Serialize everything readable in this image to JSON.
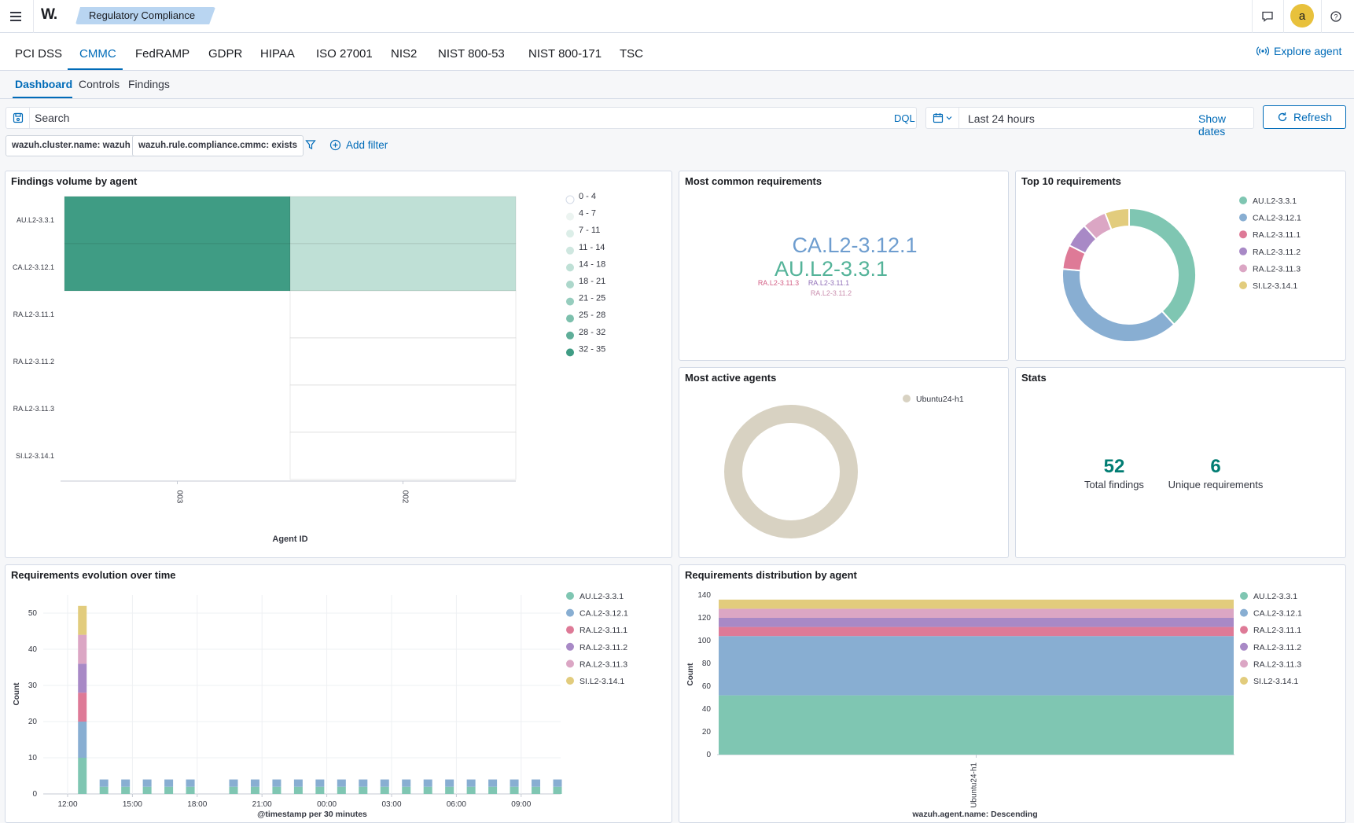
{
  "header": {
    "logo": "W.",
    "breadcrumb": "Regulatory Compliance",
    "icons": [
      "menu-icon",
      "chat-icon",
      "help-icon"
    ],
    "avatar_letter": "a"
  },
  "tabs": [
    "PCI DSS",
    "CMMC",
    "FedRAMP",
    "GDPR",
    "HIPAA",
    "ISO 27001",
    "NIS2",
    "NIST 800-53",
    "NIST 800-171",
    "TSC"
  ],
  "active_tab": "CMMC",
  "explore_agent": "Explore agent",
  "subtabs": [
    "Dashboard",
    "Controls",
    "Findings"
  ],
  "active_subtab": "Dashboard",
  "search": {
    "placeholder": "Search",
    "language": "DQL"
  },
  "time": {
    "range": "Last 24 hours",
    "show_dates": "Show dates",
    "refresh": "Refresh"
  },
  "filters": [
    "wazuh.cluster.name: wazuh",
    "wazuh.rule.compliance.cmmc: exists"
  ],
  "add_filter": "Add filter",
  "colors": {
    "AU.L2-3.3.1": "#7fc6b2",
    "CA.L2-3.12.1": "#88aed2",
    "RA.L2-3.11.1": "#de7a97",
    "RA.L2-3.11.2": "#a889c6",
    "RA.L2-3.11.3": "#dba6c4",
    "SI.L2-3.14.1": "#e2cc7d",
    "agent": "#d8d2c2",
    "accent": "#006bb8",
    "stat": "#017d73"
  },
  "panels": {
    "heatmap": {
      "title": "Findings volume by agent",
      "chart_data": {
        "type": "heatmap",
        "xlabel": "Agent ID",
        "x": [
          "003",
          "002"
        ],
        "y": [
          "AU.L2-3.3.1",
          "CA.L2-3.12.1",
          "RA.L2-3.11.1",
          "RA.L2-3.11.2",
          "RA.L2-3.11.3",
          "SI.L2-3.14.1"
        ],
        "values": [
          [
            33,
            17
          ],
          [
            33,
            17
          ],
          [
            0,
            3
          ],
          [
            0,
            3
          ],
          [
            0,
            3
          ],
          [
            0,
            3
          ]
        ],
        "legend": [
          "0 - 4",
          "4 - 7",
          "7 - 11",
          "11 - 14",
          "14 - 18",
          "18 - 21",
          "21 - 25",
          "25 - 28",
          "28 - 32",
          "32 - 35"
        ],
        "legend_colors": [
          "#ffffff",
          "#ecf4f1",
          "#dceee8",
          "#cfe7e0",
          "#bfe0d6",
          "#acd7cb",
          "#96cdbe",
          "#7dc0ad",
          "#5fae99",
          "#3f9c84"
        ]
      }
    },
    "wordcloud": {
      "title": "Most common requirements",
      "words": [
        "CA.L2-3.12.1",
        "AU.L2-3.3.1",
        "RA.L2-3.11.3",
        "RA.L2-3.11.1",
        "RA.L2-3.11.2"
      ]
    },
    "top10": {
      "title": "Top 10 requirements",
      "chart_data": {
        "type": "pie",
        "categories": [
          "AU.L2-3.3.1",
          "CA.L2-3.12.1",
          "RA.L2-3.11.1",
          "RA.L2-3.11.2",
          "RA.L2-3.11.3",
          "SI.L2-3.14.1"
        ],
        "values": [
          52,
          52,
          8,
          8,
          8,
          8
        ],
        "legend": "right"
      }
    },
    "agents": {
      "title": "Most active agents",
      "chart_data": {
        "type": "pie",
        "categories": [
          "Ubuntu24-h1"
        ],
        "values": [
          136
        ],
        "legend": "right"
      }
    },
    "stats": {
      "title": "Stats",
      "total": "52",
      "total_label": "Total findings",
      "unique": "6",
      "unique_label": "Unique requirements"
    },
    "evolution": {
      "title": "Requirements evolution over time",
      "chart_data": {
        "type": "bar",
        "stacked": true,
        "xlabel": "@timestamp per 30 minutes",
        "ylabel": "Count",
        "ylim": [
          0,
          55
        ],
        "yticks": [
          0,
          10,
          20,
          30,
          40,
          50
        ],
        "xticks": [
          "12:00",
          "15:00",
          "18:00",
          "21:00",
          "00:00",
          "03:00",
          "06:00",
          "09:00"
        ],
        "categories": [
          "12:30",
          "13:30",
          "14:30",
          "15:30",
          "16:30",
          "17:30",
          "19:30",
          "20:30",
          "21:30",
          "22:30",
          "23:30",
          "00:30",
          "01:30",
          "02:30",
          "03:30",
          "04:30",
          "05:30",
          "06:30",
          "07:30",
          "08:30",
          "09:30",
          "10:30"
        ],
        "series": [
          {
            "name": "AU.L2-3.3.1",
            "values": [
              10,
              2,
              2,
              2,
              2,
              2,
              2,
              2,
              2,
              2,
              2,
              2,
              2,
              2,
              2,
              2,
              2,
              2,
              2,
              2,
              2,
              2
            ]
          },
          {
            "name": "CA.L2-3.12.1",
            "values": [
              10,
              2,
              2,
              2,
              2,
              2,
              2,
              2,
              2,
              2,
              2,
              2,
              2,
              2,
              2,
              2,
              2,
              2,
              2,
              2,
              2,
              2
            ]
          },
          {
            "name": "RA.L2-3.11.1",
            "values": [
              8,
              0,
              0,
              0,
              0,
              0,
              0,
              0,
              0,
              0,
              0,
              0,
              0,
              0,
              0,
              0,
              0,
              0,
              0,
              0,
              0,
              0
            ]
          },
          {
            "name": "RA.L2-3.11.2",
            "values": [
              8,
              0,
              0,
              0,
              0,
              0,
              0,
              0,
              0,
              0,
              0,
              0,
              0,
              0,
              0,
              0,
              0,
              0,
              0,
              0,
              0,
              0
            ]
          },
          {
            "name": "RA.L2-3.11.3",
            "values": [
              8,
              0,
              0,
              0,
              0,
              0,
              0,
              0,
              0,
              0,
              0,
              0,
              0,
              0,
              0,
              0,
              0,
              0,
              0,
              0,
              0,
              0
            ]
          },
          {
            "name": "SI.L2-3.14.1",
            "values": [
              8,
              0,
              0,
              0,
              0,
              0,
              0,
              0,
              0,
              0,
              0,
              0,
              0,
              0,
              0,
              0,
              0,
              0,
              0,
              0,
              0,
              0
            ]
          }
        ],
        "legend": "right"
      }
    },
    "distribution": {
      "title": "Requirements distribution by agent",
      "chart_data": {
        "type": "bar",
        "stacked": true,
        "xlabel": "wazuh.agent.name: Descending",
        "ylabel": "Count",
        "ylim": [
          0,
          140
        ],
        "yticks": [
          0,
          20,
          40,
          60,
          80,
          100,
          120,
          140
        ],
        "categories": [
          "Ubuntu24-h1"
        ],
        "series": [
          {
            "name": "AU.L2-3.3.1",
            "values": [
              52
            ]
          },
          {
            "name": "CA.L2-3.12.1",
            "values": [
              52
            ]
          },
          {
            "name": "RA.L2-3.11.1",
            "values": [
              8
            ]
          },
          {
            "name": "RA.L2-3.11.2",
            "values": [
              8
            ]
          },
          {
            "name": "RA.L2-3.11.3",
            "values": [
              8
            ]
          },
          {
            "name": "SI.L2-3.14.1",
            "values": [
              8
            ]
          }
        ],
        "legend": "right"
      }
    }
  }
}
